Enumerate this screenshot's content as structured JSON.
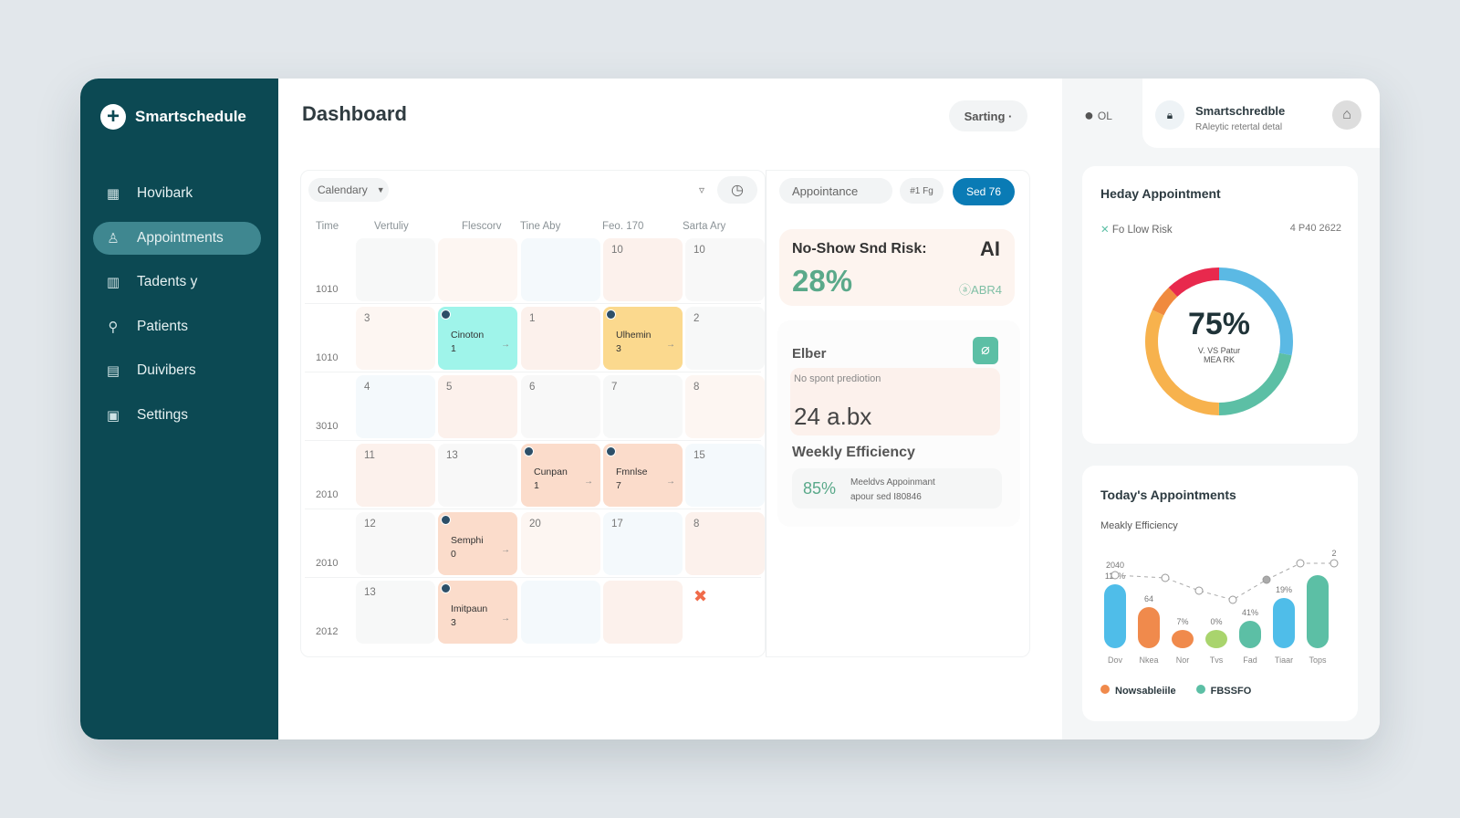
{
  "sidebar": {
    "brand": "Smartschedule",
    "items": [
      {
        "label": "Hovibark",
        "icon": "dashboard-icon",
        "glyph": "▦"
      },
      {
        "label": "Appointments",
        "icon": "user-icon",
        "glyph": "♙",
        "active": true
      },
      {
        "label": "Tadents y",
        "icon": "calendar-icon",
        "glyph": "▥"
      },
      {
        "label": "Patients",
        "icon": "stethoscope-icon",
        "glyph": "⚲"
      },
      {
        "label": "Duivibers",
        "icon": "clipboard-icon",
        "glyph": "▤"
      },
      {
        "label": "Settings",
        "icon": "settings-icon",
        "glyph": "▣"
      }
    ]
  },
  "header": {
    "title": "Dashboard",
    "sort_button": "Sarting ·",
    "user_label": "OL",
    "profile": {
      "name": "Smartschredble",
      "subtitle": "RAleytic retertal detal"
    }
  },
  "calendar": {
    "view_select": "Calendary",
    "columns": [
      "Time",
      "Vertuliy",
      "Flescorv",
      "Tine Aby",
      "Feo. 170",
      "Sarta Ary"
    ],
    "rows": [
      {
        "time": "1010",
        "cells": [
          {
            "n": ""
          },
          {
            "n": ""
          },
          {
            "n": ""
          },
          {
            "n": "10"
          },
          {
            "n": "10"
          }
        ]
      },
      {
        "time": "1010",
        "cells": [
          {
            "n": "3"
          },
          {
            "n": "",
            "event": "Cinoton",
            "count": "1",
            "color": "#9ff4ea"
          },
          {
            "n": "1"
          },
          {
            "n": "",
            "event": "Ulhemin",
            "count": "3",
            "color": "#fbd98e"
          },
          {
            "n": "2"
          }
        ]
      },
      {
        "time": "3010",
        "cells": [
          {
            "n": "4"
          },
          {
            "n": "5"
          },
          {
            "n": "6"
          },
          {
            "n": "7"
          },
          {
            "n": "8"
          }
        ]
      },
      {
        "time": "2010",
        "cells": [
          {
            "n": "11"
          },
          {
            "n": "13"
          },
          {
            "n": "",
            "event": "Cunpan",
            "count": "1",
            "color": "#fbdccb"
          },
          {
            "n": "",
            "event": "Fmnlse",
            "count": "7",
            "color": "#fbdccb"
          },
          {
            "n": "15"
          }
        ]
      },
      {
        "time": "2010",
        "cells": [
          {
            "n": "12"
          },
          {
            "n": "",
            "event": "Semphi",
            "count": "0",
            "color": "#fbdccb"
          },
          {
            "n": "20"
          },
          {
            "n": "17"
          },
          {
            "n": "8"
          }
        ]
      },
      {
        "time": "2012",
        "cells": [
          {
            "n": "13"
          },
          {
            "n": "",
            "event": "Imitpaun",
            "count": "3",
            "color": "#fbdccb"
          },
          {
            "n": ""
          },
          {
            "n": ""
          },
          {
            "n": "✖",
            "cancel": true
          }
        ]
      }
    ]
  },
  "tools": {
    "search": "Appointance",
    "filter": "#1 Fg",
    "primary": "Sed 76"
  },
  "risk": {
    "title": "No-Show Snd Risk:",
    "badge": "AI",
    "value": "28%",
    "code": "ⓐABR4"
  },
  "elber": {
    "title": "Elber",
    "subtitle": "No spont prediotion",
    "value": "24 a.bx"
  },
  "weekly": {
    "title": "Weekly Efficiency",
    "value": "85%",
    "line1": "Meeldvs Appoinmant",
    "line2": "apour sed I80846"
  },
  "donut": {
    "title": "Heday Appointment",
    "risk": "Fo Llow Risk",
    "date": "4 P40 2622",
    "value": "75%",
    "sub1": "V. VS Patur",
    "sub2": "MEA RK",
    "segments": [
      {
        "color": "#5bb9e4",
        "pct": 28
      },
      {
        "color": "#5cbfa5",
        "pct": 22
      },
      {
        "color": "#f7b24d",
        "pct": 32
      },
      {
        "color": "#f08a3e",
        "pct": 6
      },
      {
        "color": "#e8294d",
        "pct": 12
      }
    ]
  },
  "chart_data": {
    "type": "bar",
    "title": "Today's Appointments",
    "subtitle": "Meakly Efficiency",
    "categories": [
      "Dov",
      "Nkea",
      "Nor",
      "Tvs",
      "Fad",
      "Tiaar",
      "Tops"
    ],
    "values": [
      70,
      45,
      20,
      20,
      30,
      55,
      80
    ],
    "colors": [
      "#4fbde9",
      "#f08a4c",
      "#f08a4c",
      "#a9d46d",
      "#5cbfa5",
      "#4fbde9",
      "#5cbfa5"
    ],
    "bar_labels": [
      "110%",
      "64",
      "7%",
      "0%",
      "41%",
      "19%",
      ""
    ],
    "line": {
      "values": [
        75,
        72,
        58,
        48,
        70,
        88,
        88
      ],
      "labels": [
        "2040",
        "",
        "",
        "",
        "",
        "",
        "2"
      ]
    },
    "legend": [
      {
        "label": "Nowsableiile",
        "color": "#f08a4c"
      },
      {
        "label": "FBSSFO",
        "color": "#5cbfa5"
      }
    ]
  }
}
